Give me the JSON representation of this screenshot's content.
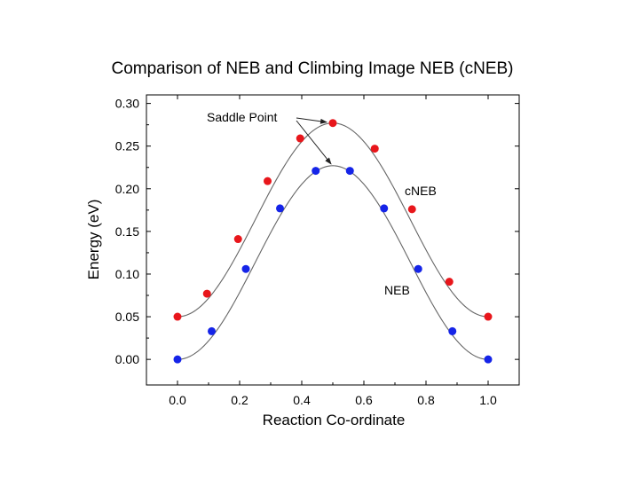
{
  "chart_data": {
    "type": "scatter",
    "title": "Comparison of NEB and Climbing Image NEB (cNEB)",
    "xlabel": "Reaction Co-ordinate",
    "ylabel": "Energy  (eV)",
    "xlim": [
      -0.1,
      1.1
    ],
    "ylim": [
      -0.03,
      0.31
    ],
    "xticks": [
      0.0,
      0.2,
      0.4,
      0.6,
      0.8,
      1.0
    ],
    "xtick_labels": [
      "0.0",
      "0.2",
      "0.4",
      "0.6",
      "0.8",
      "1.0"
    ],
    "yticks": [
      0.0,
      0.05,
      0.1,
      0.15,
      0.2,
      0.25,
      0.3
    ],
    "ytick_labels": [
      "0.00",
      "0.05",
      "0.10",
      "0.15",
      "0.20",
      "0.25",
      "0.30"
    ],
    "grid": false,
    "series": [
      {
        "name": "cNEB",
        "color": "#e8161b",
        "x": [
          0.0,
          0.095,
          0.195,
          0.29,
          0.395,
          0.5,
          0.635,
          0.755,
          0.875,
          1.0
        ],
        "values": [
          0.05,
          0.077,
          0.141,
          0.209,
          0.259,
          0.277,
          0.247,
          0.176,
          0.091,
          0.05
        ],
        "fit_curve": {
          "baseline": 0.05,
          "amplitude": 0.227,
          "peak_x": 0.5,
          "color": "#666666"
        }
      },
      {
        "name": "NEB",
        "color": "#1524e8",
        "x": [
          0.0,
          0.11,
          0.22,
          0.33,
          0.445,
          0.555,
          0.665,
          0.775,
          0.885,
          1.0
        ],
        "values": [
          0.0,
          0.033,
          0.106,
          0.177,
          0.221,
          0.221,
          0.177,
          0.106,
          0.033,
          0.0
        ],
        "fit_curve": {
          "baseline": 0.0,
          "amplitude": 0.227,
          "peak_x": 0.5,
          "color": "#666666"
        }
      }
    ],
    "annotations": [
      {
        "text": "Saddle Point",
        "arrow_targets": [
          {
            "x": 0.5,
            "y": 0.277
          },
          {
            "x": 0.5,
            "y": 0.227
          }
        ]
      },
      {
        "text": "cNEB",
        "series": "cNEB"
      },
      {
        "text": "NEB",
        "series": "NEB"
      }
    ]
  }
}
